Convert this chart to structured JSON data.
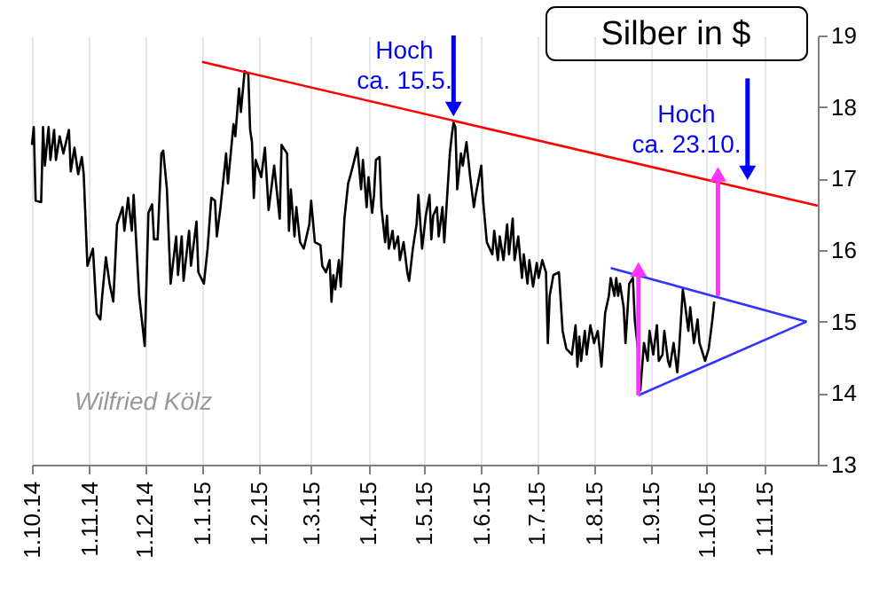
{
  "chart_data": {
    "type": "line",
    "title": "Silber in $",
    "annotations": [
      "Hoch\nca. 15.5.",
      "Hoch\nca. 23.10.",
      "Wilfried Kölz"
    ],
    "xlim": [
      "2014-10-01",
      "2015-11-30"
    ],
    "xticks": [
      {
        "value": "2014-10-01",
        "label": "1.10.14"
      },
      {
        "value": "2014-11-01",
        "label": "1.11.14"
      },
      {
        "value": "2014-12-01",
        "label": "1.12.14"
      },
      {
        "value": "2015-01-01",
        "label": "1.1.15"
      },
      {
        "value": "2015-02-01",
        "label": "1.2.15"
      },
      {
        "value": "2015-03-01",
        "label": "1.3.15"
      },
      {
        "value": "2015-04-01",
        "label": "1.4.15"
      },
      {
        "value": "2015-05-01",
        "label": "1.5.15"
      },
      {
        "value": "2015-06-01",
        "label": "1.6.15"
      },
      {
        "value": "2015-07-01",
        "label": "1.7.15"
      },
      {
        "value": "2015-08-01",
        "label": "1.8.15"
      },
      {
        "value": "2015-09-01",
        "label": "1.9.15"
      },
      {
        "value": "2015-10-01",
        "label": "1.10.15"
      },
      {
        "value": "2015-11-01",
        "label": "1.11.15"
      }
    ],
    "ylim": [
      13,
      19
    ],
    "yticks": [
      13,
      14,
      15,
      16,
      17,
      18,
      19
    ],
    "grid": "x",
    "series": [
      {
        "color": "#000000",
        "x": [
          "2014-10-01",
          "2014-10-02",
          "2014-10-03",
          "2014-10-06",
          "2014-10-07",
          "2014-10-08",
          "2014-10-10",
          "2014-10-11",
          "2014-10-13",
          "2014-10-14",
          "2014-10-16",
          "2014-10-18",
          "2014-10-21",
          "2014-10-22",
          "2014-10-24",
          "2014-10-26",
          "2014-10-28",
          "2014-10-29",
          "2014-10-31",
          "2014-11-03",
          "2014-11-05",
          "2014-11-07",
          "2014-11-08",
          "2014-11-10",
          "2014-11-12",
          "2014-11-14",
          "2014-11-16",
          "2014-11-19",
          "2014-11-20",
          "2014-11-22",
          "2014-11-24",
          "2014-11-25",
          "2014-11-28",
          "2014-12-01",
          "2014-12-03",
          "2014-12-05",
          "2014-12-06",
          "2014-12-08",
          "2014-12-10",
          "2014-12-11",
          "2014-12-13",
          "2014-12-15",
          "2014-12-18",
          "2014-12-19",
          "2014-12-21",
          "2014-12-22",
          "2014-12-25",
          "2014-12-26",
          "2014-12-29",
          "2014-12-30",
          "2015-01-02",
          "2015-01-04",
          "2015-01-06",
          "2015-01-08",
          "2015-01-09",
          "2015-01-11",
          "2015-01-14",
          "2015-01-15",
          "2015-01-18",
          "2015-01-19",
          "2015-01-21",
          "2015-01-22",
          "2015-01-24",
          "2015-01-26",
          "2015-01-27",
          "2015-01-28",
          "2015-01-29",
          "2015-01-30",
          "2015-02-02",
          "2015-02-04",
          "2015-02-06",
          "2015-02-09",
          "2015-02-10",
          "2015-02-12",
          "2015-02-13",
          "2015-02-16",
          "2015-02-17",
          "2015-02-18",
          "2015-02-20",
          "2015-02-21",
          "2015-02-23",
          "2015-02-25",
          "2015-02-28",
          "2015-03-01",
          "2015-03-03",
          "2015-03-06",
          "2015-03-07",
          "2015-03-09",
          "2015-03-11",
          "2015-03-12",
          "2015-03-13",
          "2015-03-14",
          "2015-03-16",
          "2015-03-17",
          "2015-03-19",
          "2015-03-21",
          "2015-03-22",
          "2015-03-24",
          "2015-03-26",
          "2015-03-28",
          "2015-03-29",
          "2015-03-31",
          "2015-04-01",
          "2015-04-03",
          "2015-04-04",
          "2015-04-05",
          "2015-04-07",
          "2015-04-08",
          "2015-04-10",
          "2015-04-11",
          "2015-04-12",
          "2015-04-14",
          "2015-04-15",
          "2015-04-17",
          "2015-04-18",
          "2015-04-20",
          "2015-04-22",
          "2015-04-23",
          "2015-04-25",
          "2015-04-27",
          "2015-04-28",
          "2015-04-30",
          "2015-05-02",
          "2015-05-04",
          "2015-05-05",
          "2015-05-06",
          "2015-05-08",
          "2015-05-09",
          "2015-05-11",
          "2015-05-12",
          "2015-05-15",
          "2015-05-16",
          "2015-05-17",
          "2015-05-18",
          "2015-05-19",
          "2015-05-21",
          "2015-05-22",
          "2015-05-24",
          "2015-05-26",
          "2015-05-28",
          "2015-05-29",
          "2015-06-01",
          "2015-06-02",
          "2015-06-04",
          "2015-06-07",
          "2015-06-08",
          "2015-06-10",
          "2015-06-11",
          "2015-06-13",
          "2015-06-15",
          "2015-06-16",
          "2015-06-18",
          "2015-06-19",
          "2015-06-21",
          "2015-06-23",
          "2015-06-24",
          "2015-06-26",
          "2015-06-27",
          "2015-06-29",
          "2015-07-01",
          "2015-07-02",
          "2015-07-04",
          "2015-07-06",
          "2015-07-07",
          "2015-07-08",
          "2015-07-10",
          "2015-07-13",
          "2015-07-15",
          "2015-07-17",
          "2015-07-20",
          "2015-07-22",
          "2015-07-23",
          "2015-07-24",
          "2015-07-25",
          "2015-07-27",
          "2015-07-28",
          "2015-07-30",
          "2015-08-01",
          "2015-08-03",
          "2015-08-05",
          "2015-08-07",
          "2015-08-09",
          "2015-08-10",
          "2015-08-12",
          "2015-08-13",
          "2015-08-14",
          "2015-08-15",
          "2015-08-17",
          "2015-08-18",
          "2015-08-20",
          "2015-08-22",
          "2015-08-23",
          "2015-08-25",
          "2015-08-26",
          "2015-08-28",
          "2015-08-30",
          "2015-08-31",
          "2015-09-02",
          "2015-09-04",
          "2015-09-05",
          "2015-09-07",
          "2015-09-08",
          "2015-09-10",
          "2015-09-11",
          "2015-09-13",
          "2015-09-15",
          "2015-09-16",
          "2015-09-18",
          "2015-09-19",
          "2015-09-21",
          "2015-09-22",
          "2015-09-24",
          "2015-09-26",
          "2015-09-27",
          "2015-09-29",
          "2015-09-30",
          "2015-10-02",
          "2015-10-04",
          "2015-10-05"
        ],
        "values": [
          17.47,
          17.72,
          16.69,
          16.67,
          17.72,
          17.18,
          17.72,
          17.26,
          17.68,
          17.26,
          17.59,
          17.35,
          17.68,
          17.1,
          17.43,
          17.06,
          17.3,
          17.06,
          15.78,
          16.02,
          15.11,
          15.03,
          15.36,
          15.9,
          15.53,
          15.28,
          16.36,
          16.6,
          16.27,
          16.73,
          16.27,
          16.77,
          15.36,
          14.66,
          16.52,
          16.64,
          16.15,
          16.15,
          17.35,
          17.39,
          16.85,
          15.53,
          16.19,
          15.65,
          16.19,
          15.57,
          16.27,
          15.78,
          16.4,
          15.69,
          15.53,
          16.02,
          16.73,
          16.69,
          16.19,
          16.6,
          17.35,
          16.93,
          17.76,
          17.59,
          18.26,
          17.93,
          18.5,
          18.46,
          17.68,
          17.51,
          16.73,
          17.26,
          17.02,
          17.43,
          16.56,
          17.18,
          16.93,
          16.44,
          17.47,
          17.35,
          16.27,
          16.85,
          16.19,
          16.6,
          16.11,
          16.02,
          16.36,
          16.69,
          16.11,
          16.07,
          15.78,
          15.69,
          15.86,
          15.28,
          15.65,
          15.45,
          15.86,
          15.49,
          16.44,
          16.93,
          17.02,
          17.22,
          17.43,
          16.85,
          17.26,
          16.6,
          17.02,
          16.52,
          16.77,
          17.26,
          17.3,
          16.6,
          16.11,
          16.48,
          16.02,
          16.27,
          16.02,
          16.19,
          15.86,
          16.11,
          15.69,
          15.57,
          16.02,
          16.36,
          16.77,
          16.02,
          16.48,
          16.77,
          16.15,
          16.48,
          16.6,
          16.19,
          16.6,
          16.11,
          17.35,
          17.59,
          17.78,
          17.72,
          16.85,
          17.35,
          17.18,
          17.51,
          17.02,
          16.6,
          16.77,
          17.18,
          16.69,
          16.11,
          15.94,
          16.27,
          15.86,
          16.19,
          15.86,
          16.36,
          15.94,
          16.44,
          15.86,
          16.19,
          15.61,
          15.94,
          15.53,
          15.86,
          15.49,
          15.82,
          15.61,
          15.86,
          15.69,
          14.7,
          15.36,
          15.65,
          15.69,
          14.87,
          14.62,
          14.54,
          14.95,
          14.37,
          14.79,
          14.45,
          14.87,
          14.54,
          14.95,
          14.7,
          14.87,
          14.37,
          15.12,
          15.36,
          15.61,
          15.36,
          15.61,
          15.36,
          15.53,
          15.2,
          14.7,
          15.53,
          15.61,
          15.03,
          14.54,
          14.04,
          14.7,
          14.45,
          14.87,
          14.54,
          14.95,
          14.45,
          14.54,
          14.87,
          14.45,
          14.37,
          14.7,
          14.29,
          14.62,
          15.45,
          15.28,
          14.87,
          15.2,
          14.7,
          15.03,
          14.7,
          14.54,
          14.45,
          14.62,
          15.03,
          15.28
        ]
      },
      {
        "color": "#ff0000",
        "x": [
          "2015-01-01",
          "2015-11-30"
        ],
        "values": [
          18.63,
          16.62
        ]
      },
      {
        "color": "#3333ff",
        "x": [
          "2015-08-10",
          "2015-11-24"
        ],
        "values": [
          15.75,
          15.0
        ]
      },
      {
        "color": "#3333ff",
        "x": [
          "2015-08-25",
          "2015-11-24"
        ],
        "values": [
          13.97,
          15.0
        ]
      },
      {
        "color": "#ff33ff",
        "marker": "triangle",
        "x": [
          "2015-08-25",
          "2015-08-25"
        ],
        "values": [
          13.97,
          15.73
        ]
      },
      {
        "color": "#ff33ff",
        "marker": "triangle",
        "x": [
          "2015-10-07",
          "2015-10-07"
        ],
        "values": [
          15.36,
          17.06
        ]
      },
      {
        "color": "#0000ff",
        "marker": "triangle",
        "x": [
          "2015-05-17",
          "2015-05-17"
        ],
        "values": [
          19.0,
          17.97
        ]
      },
      {
        "color": "#0000ff",
        "marker": "triangle",
        "x": [
          "2015-10-23",
          "2015-10-23"
        ],
        "values": [
          18.4,
          17.08
        ]
      }
    ]
  }
}
